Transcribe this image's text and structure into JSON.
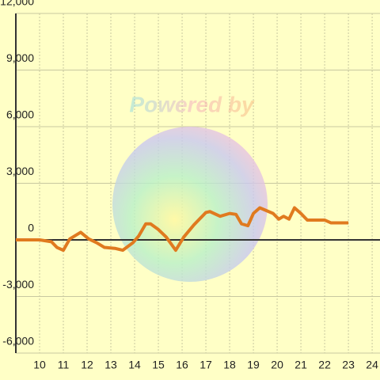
{
  "chart_data": {
    "type": "line",
    "watermark": "Powered by",
    "x": [
      9,
      10,
      10.5,
      10.73,
      11,
      11.27,
      11.73,
      12.07,
      12.4,
      12.73,
      13.17,
      13.5,
      13.93,
      14.17,
      14.47,
      14.67,
      15,
      15.33,
      15.73,
      16.07,
      16.5,
      17,
      17.17,
      17.6,
      18,
      18.27,
      18.5,
      18.77,
      19,
      19.27,
      19.83,
      20.07,
      20.27,
      20.5,
      20.73,
      21,
      21.27,
      22,
      22.27,
      23
    ],
    "series": [
      {
        "color": "#e07a1f",
        "values": [
          0,
          0,
          -100,
          -400,
          -550,
          50,
          400,
          50,
          -150,
          -400,
          -450,
          -550,
          -150,
          200,
          850,
          850,
          550,
          150,
          -550,
          150,
          800,
          1450,
          1500,
          1250,
          1400,
          1350,
          850,
          750,
          1400,
          1700,
          1400,
          1100,
          1250,
          1100,
          1700,
          1400,
          1050,
          1050,
          900,
          900
        ]
      }
    ],
    "xlim": [
      9,
      24.33
    ],
    "ylim": [
      -6000,
      12000
    ],
    "xticks": [
      10,
      11,
      12,
      13,
      14,
      15,
      16,
      17,
      18,
      19,
      20,
      21,
      22,
      23,
      24
    ],
    "yticks": [
      {
        "value": -6000,
        "label": "-6,000"
      },
      {
        "value": -3000,
        "label": "-3,000"
      },
      0,
      {
        "value": 3000,
        "label": "3,000"
      },
      {
        "value": 6000,
        "label": "6,000"
      },
      {
        "value": 9000,
        "label": "9,000"
      },
      {
        "value": 12000,
        "label": "12,000"
      }
    ],
    "grid": true
  }
}
